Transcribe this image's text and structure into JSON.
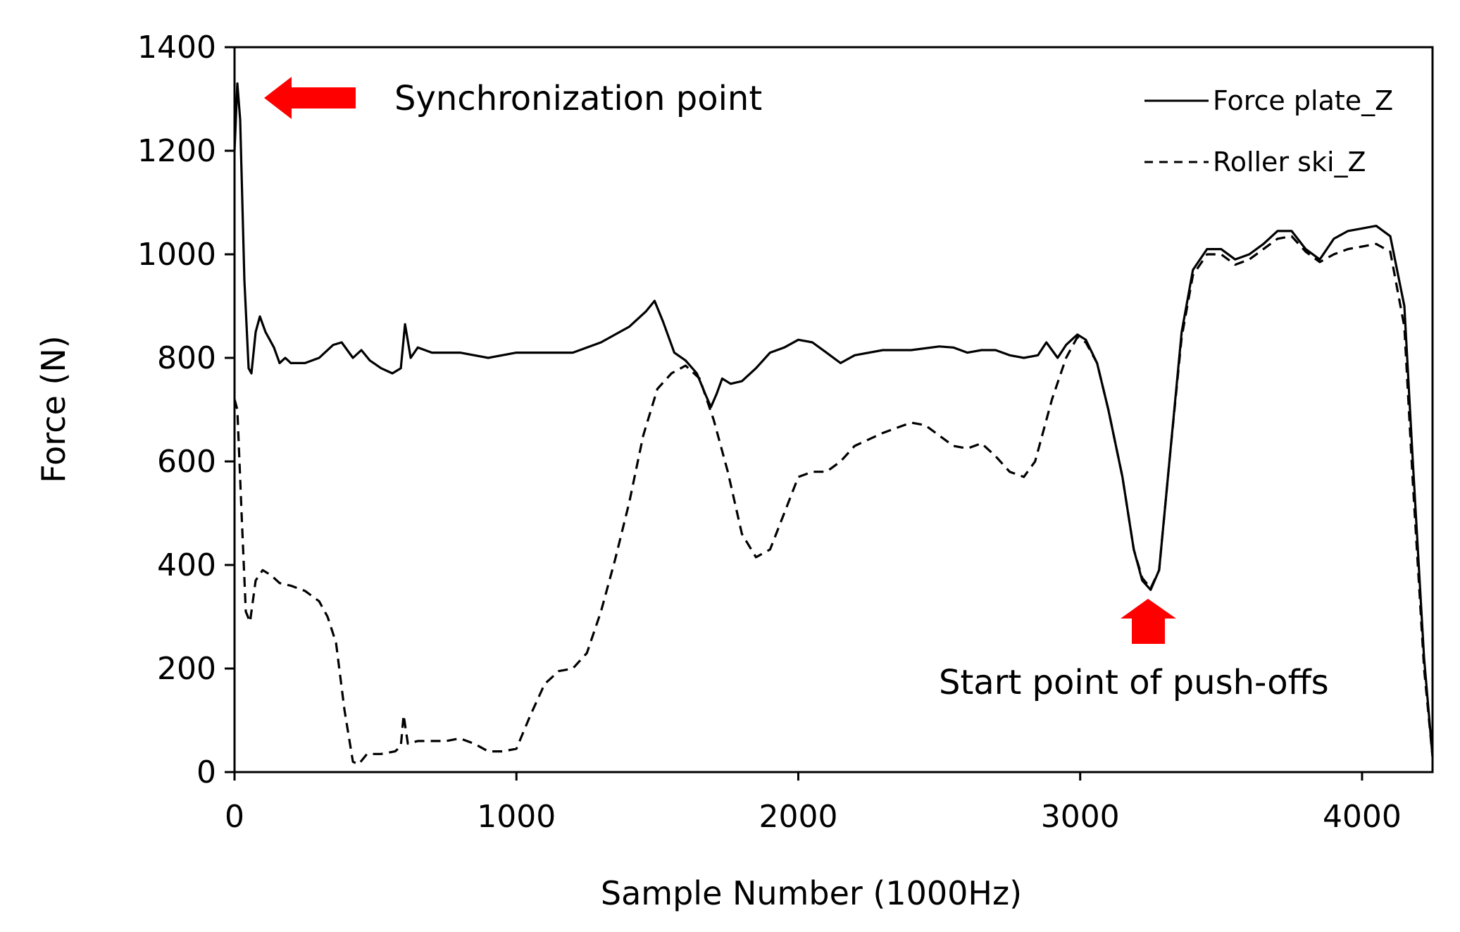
{
  "chart_data": {
    "type": "line",
    "title": "",
    "xlabel": "Sample Number (1000Hz)",
    "ylabel": "Force (N)",
    "xlim": [
      0,
      4250
    ],
    "ylim": [
      0,
      1400
    ],
    "x_ticks": [
      0,
      1000,
      2000,
      3000,
      4000
    ],
    "y_ticks": [
      0,
      200,
      400,
      600,
      800,
      1000,
      1200,
      1400
    ],
    "grid": false,
    "legend_position": "top-right",
    "series": [
      {
        "name": "Force plate_Z",
        "style": "solid",
        "color": "#000000",
        "points": [
          [
            0,
            1200
          ],
          [
            10,
            1330
          ],
          [
            20,
            1260
          ],
          [
            35,
            950
          ],
          [
            50,
            780
          ],
          [
            60,
            770
          ],
          [
            75,
            850
          ],
          [
            90,
            880
          ],
          [
            110,
            850
          ],
          [
            140,
            820
          ],
          [
            160,
            790
          ],
          [
            180,
            800
          ],
          [
            200,
            790
          ],
          [
            250,
            790
          ],
          [
            300,
            800
          ],
          [
            350,
            825
          ],
          [
            380,
            830
          ],
          [
            420,
            800
          ],
          [
            450,
            815
          ],
          [
            480,
            795
          ],
          [
            520,
            780
          ],
          [
            560,
            770
          ],
          [
            590,
            780
          ],
          [
            605,
            865
          ],
          [
            625,
            800
          ],
          [
            650,
            820
          ],
          [
            700,
            810
          ],
          [
            800,
            810
          ],
          [
            900,
            800
          ],
          [
            1000,
            810
          ],
          [
            1100,
            810
          ],
          [
            1200,
            810
          ],
          [
            1300,
            830
          ],
          [
            1400,
            860
          ],
          [
            1460,
            890
          ],
          [
            1490,
            910
          ],
          [
            1520,
            870
          ],
          [
            1560,
            810
          ],
          [
            1600,
            795
          ],
          [
            1640,
            770
          ],
          [
            1670,
            730
          ],
          [
            1690,
            705
          ],
          [
            1710,
            730
          ],
          [
            1730,
            760
          ],
          [
            1760,
            750
          ],
          [
            1800,
            755
          ],
          [
            1850,
            780
          ],
          [
            1900,
            810
          ],
          [
            1950,
            820
          ],
          [
            2000,
            835
          ],
          [
            2050,
            830
          ],
          [
            2100,
            810
          ],
          [
            2150,
            790
          ],
          [
            2200,
            805
          ],
          [
            2300,
            815
          ],
          [
            2400,
            815
          ],
          [
            2500,
            822
          ],
          [
            2550,
            820
          ],
          [
            2600,
            810
          ],
          [
            2650,
            815
          ],
          [
            2700,
            815
          ],
          [
            2750,
            805
          ],
          [
            2800,
            800
          ],
          [
            2850,
            805
          ],
          [
            2880,
            830
          ],
          [
            2920,
            800
          ],
          [
            2950,
            825
          ],
          [
            2990,
            845
          ],
          [
            3020,
            835
          ],
          [
            3060,
            790
          ],
          [
            3100,
            700
          ],
          [
            3150,
            570
          ],
          [
            3190,
            430
          ],
          [
            3220,
            370
          ],
          [
            3250,
            352
          ],
          [
            3280,
            390
          ],
          [
            3320,
            620
          ],
          [
            3360,
            850
          ],
          [
            3400,
            970
          ],
          [
            3450,
            1010
          ],
          [
            3500,
            1010
          ],
          [
            3550,
            990
          ],
          [
            3600,
            1000
          ],
          [
            3650,
            1020
          ],
          [
            3700,
            1045
          ],
          [
            3750,
            1045
          ],
          [
            3800,
            1010
          ],
          [
            3850,
            990
          ],
          [
            3900,
            1030
          ],
          [
            3950,
            1045
          ],
          [
            4000,
            1050
          ],
          [
            4050,
            1055
          ],
          [
            4100,
            1035
          ],
          [
            4150,
            900
          ],
          [
            4180,
            600
          ],
          [
            4220,
            220
          ],
          [
            4250,
            30
          ]
        ]
      },
      {
        "name": "Roller ski_Z",
        "style": "dashed",
        "color": "#000000",
        "points": [
          [
            0,
            720
          ],
          [
            10,
            700
          ],
          [
            25,
            500
          ],
          [
            40,
            310
          ],
          [
            55,
            290
          ],
          [
            75,
            370
          ],
          [
            100,
            390
          ],
          [
            130,
            380
          ],
          [
            160,
            365
          ],
          [
            200,
            360
          ],
          [
            250,
            350
          ],
          [
            300,
            330
          ],
          [
            330,
            300
          ],
          [
            360,
            250
          ],
          [
            390,
            120
          ],
          [
            420,
            20
          ],
          [
            440,
            15
          ],
          [
            470,
            35
          ],
          [
            520,
            35
          ],
          [
            570,
            40
          ],
          [
            590,
            50
          ],
          [
            600,
            110
          ],
          [
            615,
            55
          ],
          [
            650,
            60
          ],
          [
            700,
            60
          ],
          [
            750,
            60
          ],
          [
            800,
            65
          ],
          [
            850,
            55
          ],
          [
            900,
            40
          ],
          [
            950,
            40
          ],
          [
            1000,
            45
          ],
          [
            1050,
            110
          ],
          [
            1100,
            170
          ],
          [
            1150,
            195
          ],
          [
            1200,
            200
          ],
          [
            1250,
            230
          ],
          [
            1300,
            310
          ],
          [
            1350,
            410
          ],
          [
            1400,
            520
          ],
          [
            1450,
            650
          ],
          [
            1500,
            740
          ],
          [
            1550,
            770
          ],
          [
            1600,
            785
          ],
          [
            1650,
            760
          ],
          [
            1700,
            680
          ],
          [
            1750,
            580
          ],
          [
            1800,
            460
          ],
          [
            1850,
            415
          ],
          [
            1900,
            430
          ],
          [
            1950,
            500
          ],
          [
            2000,
            570
          ],
          [
            2050,
            580
          ],
          [
            2100,
            580
          ],
          [
            2150,
            600
          ],
          [
            2200,
            630
          ],
          [
            2300,
            655
          ],
          [
            2400,
            675
          ],
          [
            2450,
            670
          ],
          [
            2500,
            650
          ],
          [
            2550,
            630
          ],
          [
            2600,
            625
          ],
          [
            2650,
            635
          ],
          [
            2700,
            610
          ],
          [
            2750,
            580
          ],
          [
            2800,
            570
          ],
          [
            2840,
            600
          ],
          [
            2900,
            720
          ],
          [
            2950,
            800
          ],
          [
            2990,
            840
          ],
          [
            3020,
            830
          ],
          [
            3060,
            790
          ],
          [
            3100,
            700
          ],
          [
            3150,
            570
          ],
          [
            3190,
            430
          ],
          [
            3220,
            375
          ],
          [
            3250,
            355
          ],
          [
            3280,
            390
          ],
          [
            3320,
            620
          ],
          [
            3360,
            840
          ],
          [
            3400,
            960
          ],
          [
            3450,
            1000
          ],
          [
            3500,
            1000
          ],
          [
            3550,
            980
          ],
          [
            3600,
            990
          ],
          [
            3650,
            1010
          ],
          [
            3700,
            1030
          ],
          [
            3750,
            1035
          ],
          [
            3800,
            1005
          ],
          [
            3850,
            985
          ],
          [
            3900,
            1000
          ],
          [
            3950,
            1010
          ],
          [
            4000,
            1015
          ],
          [
            4050,
            1020
          ],
          [
            4100,
            1005
          ],
          [
            4150,
            860
          ],
          [
            4180,
            560
          ],
          [
            4220,
            200
          ],
          [
            4250,
            30
          ]
        ]
      }
    ],
    "annotations": [
      {
        "text": "Synchronization point",
        "x": 20,
        "y": 1310,
        "arrow": "left"
      },
      {
        "text": "Start point of push-offs",
        "x": 3250,
        "y": 355,
        "arrow": "up"
      }
    ],
    "arrow_color": "#ff0000"
  }
}
